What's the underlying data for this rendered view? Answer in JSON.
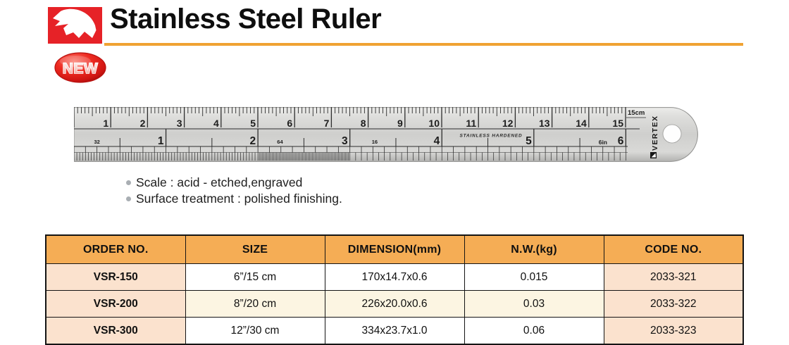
{
  "header": {
    "title": "Stainless Steel Ruler",
    "badge_label": "NEW",
    "logo_icon": "vertex-eagle-icon"
  },
  "features": [
    "Scale : acid - etched,engraved",
    "Surface treatment : polished finishing."
  ],
  "ruler": {
    "cm_numbers": [
      1,
      2,
      3,
      4,
      5,
      6,
      7,
      8,
      9,
      10,
      11,
      12,
      13,
      14,
      15
    ],
    "inch_numbers": [
      1,
      2,
      3,
      4,
      5,
      6
    ],
    "cm_unit_label": "15cm",
    "inch_unit_label": "6in",
    "engraving": "STAINLESS HARDENED",
    "brand": "VERTEX",
    "fraction_labels": [
      {
        "text": "32",
        "inch": 0.25
      },
      {
        "text": "64",
        "inch": 2.24
      },
      {
        "text": "16",
        "inch": 3.27
      }
    ]
  },
  "table": {
    "columns": [
      "ORDER NO.",
      "SIZE",
      "DIMENSION(mm)",
      "N.W.(kg)",
      "CODE NO."
    ],
    "rows": [
      {
        "cells": [
          "VSR-150",
          "6”/15 cm",
          "170x14.7x0.6",
          "0.015",
          "2033-321"
        ]
      },
      {
        "cells": [
          "VSR-200",
          "8”/20 cm",
          "226x20.0x0.6",
          "0.03",
          "2033-322"
        ]
      },
      {
        "cells": [
          "VSR-300",
          "12”/30 cm",
          "334x23.7x1.0",
          "0.06",
          "2033-323"
        ]
      }
    ]
  },
  "colors": {
    "accent_orange": "#F0A232",
    "table_header_orange": "#F5AD55",
    "table_peach": "#FBE2CE",
    "table_cream": "#FCF5E2",
    "brand_red": "#E62227"
  }
}
